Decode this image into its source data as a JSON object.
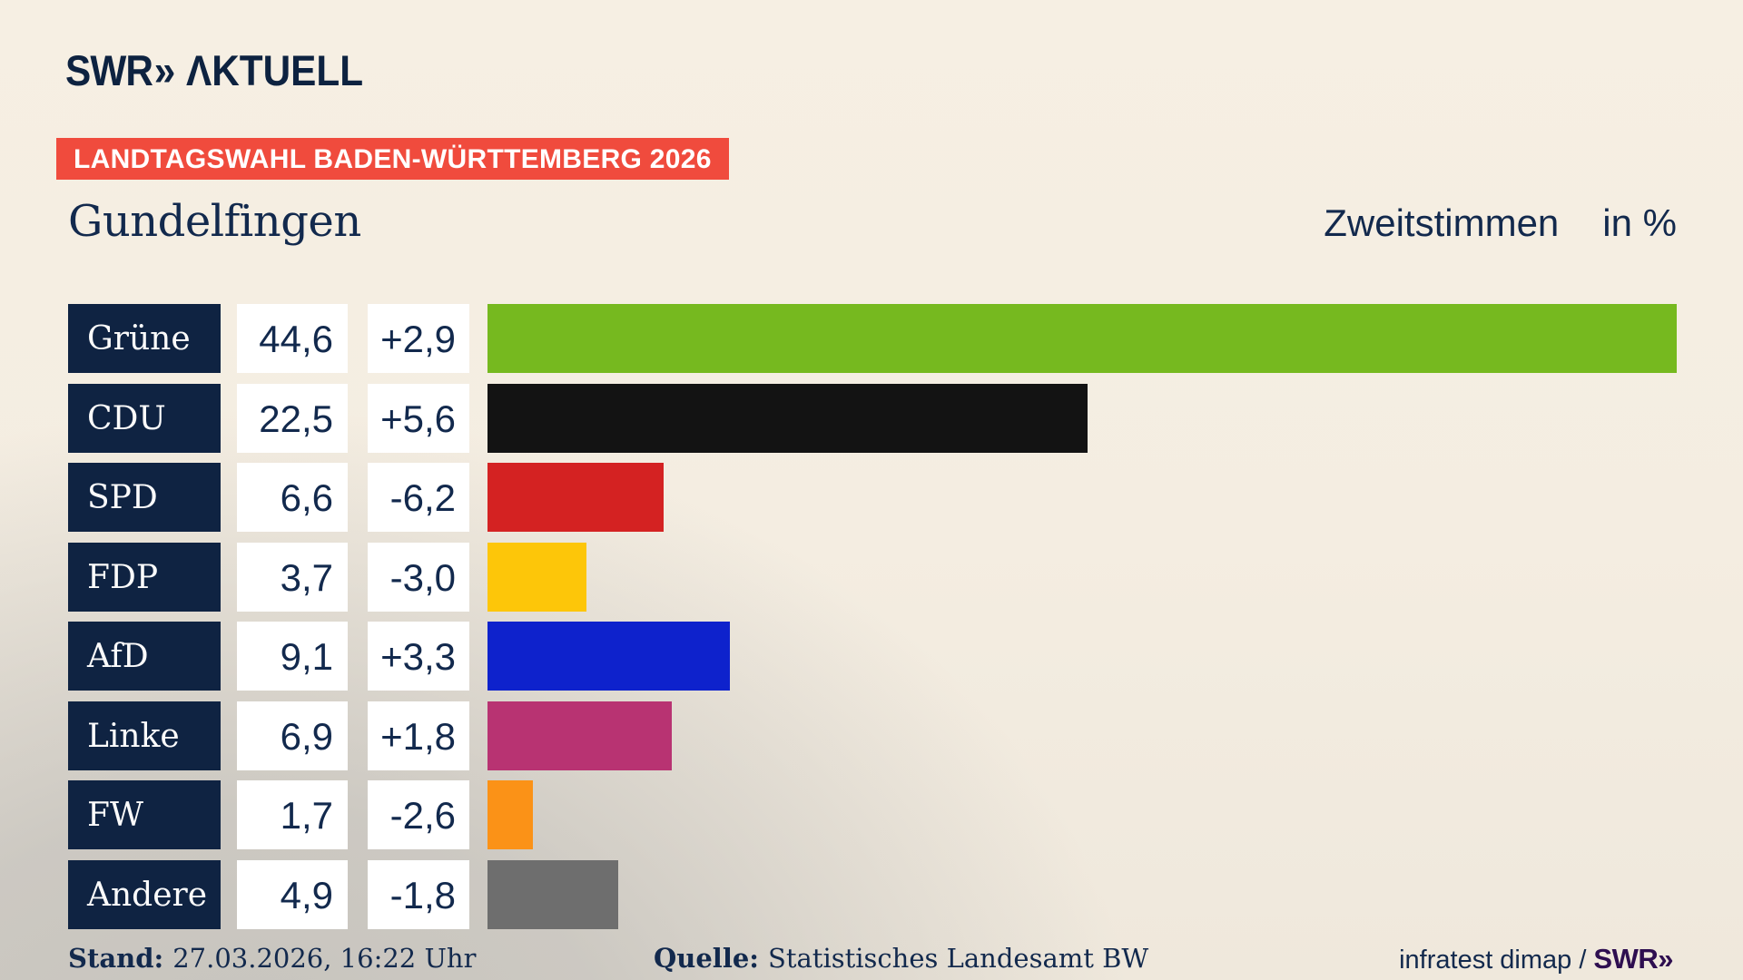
{
  "brand": {
    "logo_text": "SWR",
    "logo_chevrons": "»",
    "logo_suffix": "ΛKTUELL"
  },
  "header": {
    "badge": "LANDTAGSWAHL BADEN-WÜRTTEMBERG 2026",
    "title": "Gundelfingen",
    "subtitle": "Zweitstimmen",
    "unit": "in %"
  },
  "chart_data": {
    "type": "bar",
    "orientation": "horizontal",
    "unit": "%",
    "xlim": [
      0,
      44.6
    ],
    "grid": false,
    "legend": false,
    "categories": [
      "Grüne",
      "CDU",
      "SPD",
      "FDP",
      "AfD",
      "Linke",
      "FW",
      "Andere"
    ],
    "values": [
      44.6,
      22.5,
      6.6,
      3.7,
      9.1,
      6.9,
      1.7,
      4.9
    ],
    "value_labels": [
      "44,6",
      "22,5",
      "6,6",
      "3,7",
      "9,1",
      "6,9",
      "1,7",
      "4,9"
    ],
    "changes": [
      "+2,9",
      "+5,6",
      "-6,2",
      "-3,0",
      "+3,3",
      "+1,8",
      "-2,6",
      "-1,8"
    ],
    "colors": [
      "#76b91f",
      "#131313",
      "#d42222",
      "#fdc609",
      "#0e22cc",
      "#b83372",
      "#fb9217",
      "#6e6e6e"
    ]
  },
  "footer": {
    "stand_label": "Stand:",
    "stand_value": "27.03.2026, 16:22 Uhr",
    "quelle_label": "Quelle:",
    "quelle_value": "Statistisches Landesamt BW",
    "credit": "infratest dimap /",
    "credit_brand": "SWR»"
  },
  "colors": {
    "badge_background": "#f04b3d",
    "party_box_background": "#0f2342",
    "text_navy": "#12294d",
    "credit_brand_purple": "#2e0e50",
    "background_cream": "#f4ede1",
    "background_gray": "#c6c3bd"
  }
}
